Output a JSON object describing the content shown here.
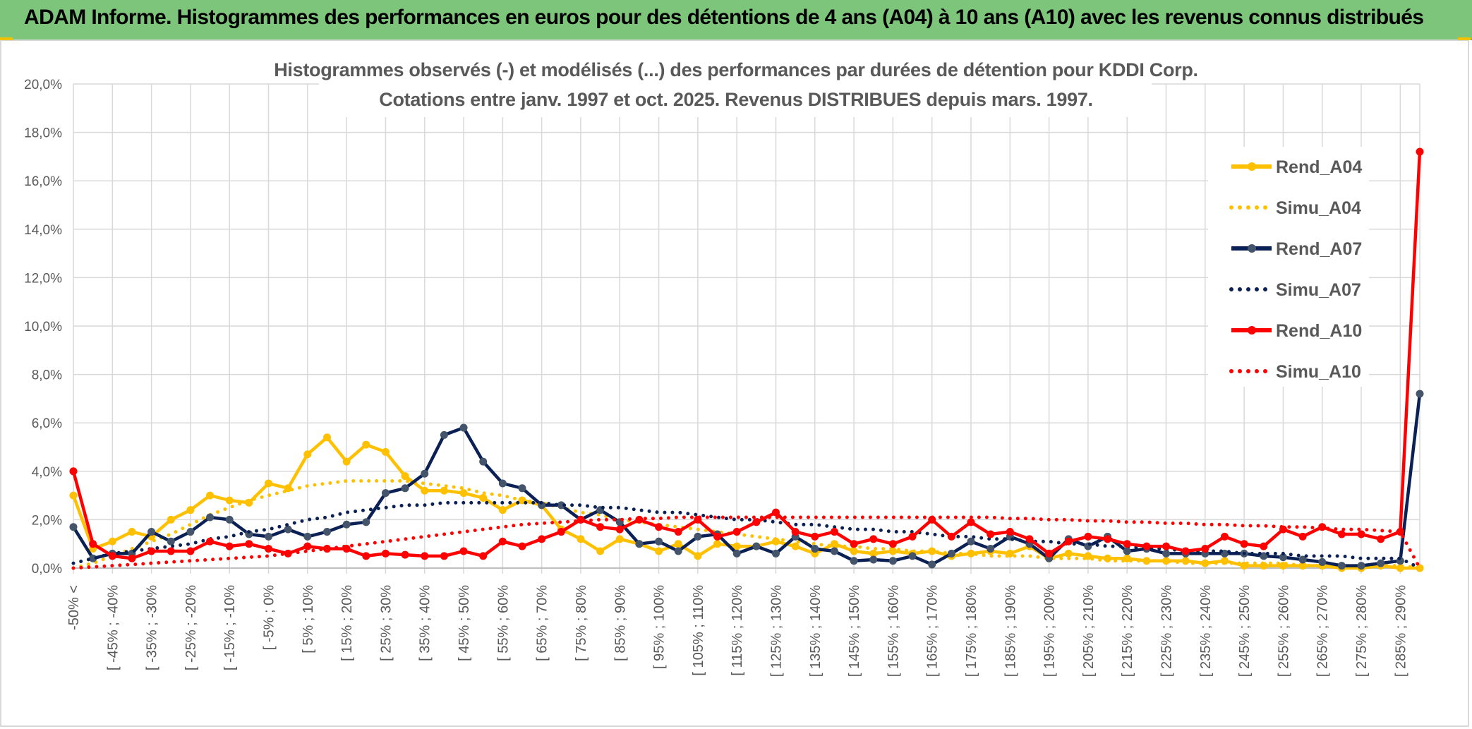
{
  "header": {
    "banner": "ADAM Informe. Histogrammes des performances en euros pour des détentions de 4 ans (A04) à 10 ans (A10) avec les revenus connus distribués"
  },
  "colors": {
    "banner_bg": "#7dc57a",
    "a04": "#ffc000",
    "a07": "#0b2155",
    "a07_marker": "#44546a",
    "a10": "#ff0000",
    "grid": "#d9d9d9",
    "text": "#595959"
  },
  "chart_data": {
    "type": "line",
    "title": "Histogrammes observés (-) et modélisés (...) des performances par durées de détention pour KDDI Corp.",
    "subtitle": "Cotations entre janv. 1997 et oct. 2025. Revenus DISTRIBUES depuis mars. 1997.",
    "xlabel": "",
    "ylabel": "",
    "ylim": [
      0,
      20
    ],
    "yticks": [
      "0,0%",
      "2,0%",
      "4,0%",
      "6,0%",
      "8,0%",
      "10,0%",
      "12,0%",
      "14,0%",
      "16,0%",
      "18,0%",
      "20,0%"
    ],
    "x_tick_labels": [
      "-50% <",
      "[ -45% ; -40%",
      "[ -35% ; -30%",
      "[ -25% ; -20%",
      "[ -15% ; -10%",
      "[ -5% ; 0%",
      "[ 5% ; 10%",
      "[ 15% ; 20%",
      "[ 25% ; 30%",
      "[ 35% ; 40%",
      "[ 45% ; 50%",
      "[ 55% ; 60%",
      "[ 65% ; 70%",
      "[ 75% ; 80%",
      "[ 85% ; 90%",
      "[ 95% ; 100%",
      "[ 105% ; 110%",
      "[ 115% ; 120%",
      "[ 125% ; 130%",
      "[ 135% ; 140%",
      "[ 145% ; 150%",
      "[ 155% ; 160%",
      "[ 165% ; 170%",
      "[ 175% ; 180%",
      "[ 185% ; 190%",
      "[ 195% ; 200%",
      "[ 205% ; 210%",
      "[ 215% ; 220%",
      "[ 225% ; 230%",
      "[ 235% ; 240%",
      "[ 245% ; 250%",
      "[ 255% ; 260%",
      "[ 265% ; 270%",
      "[ 275% ; 280%",
      "[ 285% ; 290%"
    ],
    "n_points": 70,
    "legend_position": "right",
    "series": [
      {
        "name": "Rend_A04",
        "style": "solid",
        "color": "#ffc000",
        "values": [
          3.0,
          0.8,
          1.1,
          1.5,
          1.3,
          2.0,
          2.4,
          3.0,
          2.8,
          2.7,
          3.5,
          3.3,
          4.7,
          5.4,
          4.4,
          5.1,
          4.8,
          3.8,
          3.2,
          3.2,
          3.1,
          2.9,
          2.4,
          2.8,
          2.6,
          1.6,
          1.2,
          0.7,
          1.2,
          1.0,
          0.7,
          1.0,
          0.5,
          1.0,
          0.9,
          0.9,
          1.1,
          0.9,
          0.6,
          1.0,
          0.7,
          0.6,
          0.7,
          0.6,
          0.7,
          0.5,
          0.6,
          0.7,
          0.6,
          0.9,
          0.4,
          0.6,
          0.5,
          0.4,
          0.4,
          0.3,
          0.3,
          0.3,
          0.2,
          0.3,
          0.1,
          0.1,
          0.1,
          0.1,
          0.1,
          0.0,
          0.0,
          0.1,
          0.0,
          0.0
        ]
      },
      {
        "name": "Simu_A04",
        "style": "dotted",
        "color": "#ffc000",
        "values": [
          0.0,
          0.2,
          0.5,
          0.8,
          1.1,
          1.4,
          1.8,
          2.2,
          2.5,
          2.8,
          3.0,
          3.2,
          3.4,
          3.5,
          3.6,
          3.6,
          3.6,
          3.6,
          3.5,
          3.4,
          3.3,
          3.1,
          3.0,
          2.8,
          2.7,
          2.5,
          2.3,
          2.2,
          2.0,
          1.9,
          1.8,
          1.7,
          1.6,
          1.5,
          1.4,
          1.3,
          1.2,
          1.1,
          1.0,
          0.9,
          0.9,
          0.8,
          0.8,
          0.7,
          0.7,
          0.6,
          0.6,
          0.5,
          0.5,
          0.5,
          0.4,
          0.4,
          0.4,
          0.3,
          0.3,
          0.3,
          0.3,
          0.2,
          0.2,
          0.2,
          0.2,
          0.2,
          0.2,
          0.1,
          0.1,
          0.1,
          0.1,
          0.1,
          0.1,
          0.0
        ]
      },
      {
        "name": "Rend_A07",
        "style": "solid",
        "color": "#0b2155",
        "values": [
          1.7,
          0.4,
          0.6,
          0.6,
          1.5,
          1.1,
          1.5,
          2.1,
          2.0,
          1.4,
          1.3,
          1.6,
          1.3,
          1.5,
          1.8,
          1.9,
          3.1,
          3.3,
          3.9,
          5.5,
          5.8,
          4.4,
          3.5,
          3.3,
          2.6,
          2.6,
          2.0,
          2.4,
          1.9,
          1.0,
          1.1,
          0.7,
          1.3,
          1.4,
          0.6,
          0.9,
          0.6,
          1.3,
          0.8,
          0.7,
          0.3,
          0.35,
          0.3,
          0.5,
          0.15,
          0.6,
          1.1,
          0.8,
          1.3,
          1.0,
          0.4,
          1.2,
          0.9,
          1.3,
          0.7,
          0.8,
          0.6,
          0.6,
          0.6,
          0.6,
          0.6,
          0.5,
          0.45,
          0.35,
          0.25,
          0.1,
          0.1,
          0.2,
          0.3,
          7.2
        ]
      },
      {
        "name": "Simu_A07",
        "style": "dotted",
        "color": "#0b2155",
        "values": [
          0.2,
          0.4,
          0.6,
          0.7,
          0.8,
          0.9,
          1.0,
          1.2,
          1.3,
          1.5,
          1.6,
          1.8,
          2.0,
          2.1,
          2.3,
          2.4,
          2.5,
          2.6,
          2.6,
          2.7,
          2.7,
          2.7,
          2.7,
          2.7,
          2.7,
          2.6,
          2.6,
          2.5,
          2.5,
          2.4,
          2.3,
          2.3,
          2.2,
          2.1,
          2.0,
          2.0,
          1.9,
          1.8,
          1.8,
          1.7,
          1.6,
          1.6,
          1.5,
          1.5,
          1.4,
          1.3,
          1.3,
          1.2,
          1.2,
          1.1,
          1.1,
          1.0,
          1.0,
          0.9,
          0.9,
          0.8,
          0.8,
          0.7,
          0.7,
          0.7,
          0.6,
          0.6,
          0.6,
          0.5,
          0.5,
          0.5,
          0.4,
          0.4,
          0.4,
          0.0
        ]
      },
      {
        "name": "Rend_A10",
        "style": "solid",
        "color": "#ff0000",
        "values": [
          4.0,
          1.0,
          0.5,
          0.4,
          0.7,
          0.7,
          0.7,
          1.1,
          0.9,
          1.0,
          0.8,
          0.6,
          0.9,
          0.8,
          0.8,
          0.5,
          0.6,
          0.55,
          0.5,
          0.5,
          0.7,
          0.5,
          1.1,
          0.9,
          1.2,
          1.5,
          2.0,
          1.7,
          1.6,
          2.0,
          1.7,
          1.5,
          2.0,
          1.3,
          1.5,
          1.9,
          2.3,
          1.5,
          1.3,
          1.5,
          1.0,
          1.2,
          1.0,
          1.3,
          2.0,
          1.3,
          1.9,
          1.4,
          1.5,
          1.2,
          0.6,
          1.1,
          1.3,
          1.2,
          1.0,
          0.9,
          0.9,
          0.7,
          0.8,
          1.3,
          1.0,
          0.9,
          1.6,
          1.3,
          1.7,
          1.4,
          1.4,
          1.2,
          1.5,
          17.2
        ]
      },
      {
        "name": "Simu_A10",
        "style": "dotted",
        "color": "#ff0000",
        "values": [
          0.0,
          0.05,
          0.1,
          0.15,
          0.2,
          0.25,
          0.3,
          0.35,
          0.4,
          0.45,
          0.5,
          0.6,
          0.7,
          0.8,
          0.9,
          1.0,
          1.1,
          1.2,
          1.3,
          1.4,
          1.5,
          1.6,
          1.7,
          1.8,
          1.85,
          1.9,
          1.95,
          2.0,
          2.0,
          2.05,
          2.05,
          2.1,
          2.1,
          2.1,
          2.1,
          2.1,
          2.1,
          2.1,
          2.1,
          2.1,
          2.1,
          2.1,
          2.1,
          2.1,
          2.1,
          2.1,
          2.1,
          2.1,
          2.05,
          2.05,
          2.0,
          2.0,
          1.95,
          1.95,
          1.9,
          1.9,
          1.85,
          1.85,
          1.8,
          1.8,
          1.75,
          1.75,
          1.7,
          1.7,
          1.65,
          1.6,
          1.6,
          1.55,
          1.5,
          0.0
        ]
      }
    ]
  }
}
